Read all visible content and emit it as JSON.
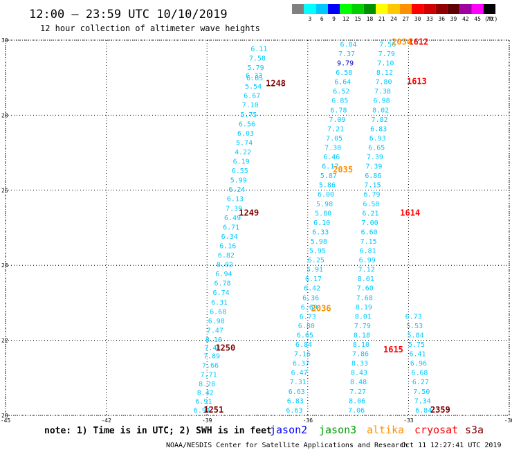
{
  "header": {
    "title": "12:00 — 23:59 UTC 10/10/2019",
    "subtitle": "12 hour collection of altimeter wave heights"
  },
  "colorbar": {
    "unit": "(ft)",
    "bins": [
      {
        "label": "",
        "color": "#808080"
      },
      {
        "label": "3",
        "color": "#00ffff"
      },
      {
        "label": "6",
        "color": "#00c8ff"
      },
      {
        "label": "9",
        "color": "#0000ff"
      },
      {
        "label": "12",
        "color": "#00ff00"
      },
      {
        "label": "15",
        "color": "#00d000"
      },
      {
        "label": "18",
        "color": "#009000"
      },
      {
        "label": "21",
        "color": "#ffff00"
      },
      {
        "label": "24",
        "color": "#ffc800"
      },
      {
        "label": "27",
        "color": "#ff9000"
      },
      {
        "label": "30",
        "color": "#ff0000"
      },
      {
        "label": "33",
        "color": "#d00000"
      },
      {
        "label": "36",
        "color": "#900000"
      },
      {
        "label": "39",
        "color": "#600000"
      },
      {
        "label": "42",
        "color": "#a000a0"
      },
      {
        "label": "45",
        "color": "#ff00ff"
      },
      {
        "label": "70",
        "color": "#000000"
      }
    ]
  },
  "footer": {
    "note": "note: 1) Time is in UTC; 2) SWH is in feet",
    "satellites": [
      {
        "name": "jason2",
        "color": "#0000ff"
      },
      {
        "name": "jason3",
        "color": "#00a000"
      },
      {
        "name": "altika",
        "color": "#ff9000"
      },
      {
        "name": "cryosat",
        "color": "#ff0000"
      },
      {
        "name": "s3a",
        "color": "#800000"
      }
    ],
    "credit": "NOAA/NESDIS Center for Satellite Applications and Research",
    "timestamp": "Oct 11 12:27:41 UTC 2019"
  },
  "chart_data": {
    "type": "scatter",
    "xlim": [
      -45,
      -30
    ],
    "ylim": [
      20,
      30
    ],
    "xticks": [
      "-45",
      "-42",
      "-39",
      "-36",
      "-33",
      "-30"
    ],
    "yticks": [
      "20",
      "22",
      "24",
      "26",
      "28",
      "30"
    ],
    "grid": true,
    "value_color": "#00c8ff",
    "value_color_high": "#0000c8",
    "tracks": [
      {
        "name": "s3a track 1",
        "points": [
          {
            "x": -39.15,
            "y": 20.15,
            "v": "6.94"
          },
          {
            "x": -39.1,
            "y": 20.39,
            "v": "6.91"
          },
          {
            "x": -39.05,
            "y": 20.62,
            "v": "8.42"
          },
          {
            "x": -39.0,
            "y": 20.85,
            "v": "8.28"
          },
          {
            "x": -38.95,
            "y": 21.1,
            "v": "7.71"
          },
          {
            "x": -38.9,
            "y": 21.35,
            "v": "7.66"
          },
          {
            "x": -38.86,
            "y": 21.6,
            "v": "7.89"
          },
          {
            "x": -38.83,
            "y": 21.82,
            "v": "7.41"
          },
          {
            "x": -38.8,
            "y": 22.03,
            "v": "8.10"
          },
          {
            "x": -38.76,
            "y": 22.28,
            "v": "7.47"
          },
          {
            "x": -38.72,
            "y": 22.53,
            "v": "6.98"
          },
          {
            "x": -38.67,
            "y": 22.78,
            "v": "6.68"
          },
          {
            "x": -38.63,
            "y": 23.03,
            "v": "6.31"
          },
          {
            "x": -38.58,
            "y": 23.28,
            "v": "6.74"
          },
          {
            "x": -38.54,
            "y": 23.53,
            "v": "6.78"
          },
          {
            "x": -38.5,
            "y": 23.78,
            "v": "6.94"
          },
          {
            "x": -38.47,
            "y": 24.03,
            "v": "8.02"
          },
          {
            "x": -38.43,
            "y": 24.28,
            "v": "6.82"
          },
          {
            "x": -38.38,
            "y": 24.53,
            "v": "6.16"
          },
          {
            "x": -38.33,
            "y": 24.78,
            "v": "6.34"
          },
          {
            "x": -38.28,
            "y": 25.03,
            "v": "6.71"
          },
          {
            "x": -38.24,
            "y": 25.28,
            "v": "6.49"
          },
          {
            "x": -38.2,
            "y": 25.53,
            "v": "7.39"
          },
          {
            "x": -38.16,
            "y": 25.78,
            "v": "6.13"
          },
          {
            "x": -38.11,
            "y": 26.03,
            "v": "6.24"
          },
          {
            "x": -38.06,
            "y": 26.28,
            "v": "5.99"
          },
          {
            "x": -38.02,
            "y": 26.53,
            "v": "6.55"
          },
          {
            "x": -37.98,
            "y": 26.78,
            "v": "6.19"
          },
          {
            "x": -37.93,
            "y": 27.03,
            "v": "4.22"
          },
          {
            "x": -37.89,
            "y": 27.28,
            "v": "5.74"
          },
          {
            "x": -37.85,
            "y": 27.53,
            "v": "6.03"
          },
          {
            "x": -37.81,
            "y": 27.78,
            "v": "6.56"
          },
          {
            "x": -37.76,
            "y": 28.03,
            "v": "5.75"
          },
          {
            "x": -37.71,
            "y": 28.28,
            "v": "7.10"
          },
          {
            "x": -37.66,
            "y": 28.53,
            "v": "6.67"
          },
          {
            "x": -37.62,
            "y": 28.78,
            "v": "5.54"
          },
          {
            "x": -37.58,
            "y": 29.0,
            "v": "6.85"
          },
          {
            "x": -37.6,
            "y": 29.07,
            "v": "6.33"
          },
          {
            "x": -37.55,
            "y": 29.28,
            "v": "5.79"
          },
          {
            "x": -37.5,
            "y": 29.53,
            "v": "7.58"
          },
          {
            "x": -37.45,
            "y": 29.78,
            "v": "6.11"
          },
          {
            "x": -37.4,
            "y": 30.03,
            "v": "7.69"
          },
          {
            "x": -37.35,
            "y": 30.28,
            "v": "5.77"
          }
        ]
      },
      {
        "name": "s3a track 2",
        "points": [
          {
            "x": -36.4,
            "y": 20.15,
            "v": "6.63"
          },
          {
            "x": -36.37,
            "y": 20.4,
            "v": "6.83"
          },
          {
            "x": -36.33,
            "y": 20.65,
            "v": "6.63"
          },
          {
            "x": -36.29,
            "y": 20.9,
            "v": "7.31"
          },
          {
            "x": -36.25,
            "y": 21.15,
            "v": "6.47"
          },
          {
            "x": -36.2,
            "y": 21.4,
            "v": "6.37"
          },
          {
            "x": -36.16,
            "y": 21.65,
            "v": "7.16"
          },
          {
            "x": -36.12,
            "y": 21.9,
            "v": "6.84"
          },
          {
            "x": -36.08,
            "y": 22.15,
            "v": "6.65"
          },
          {
            "x": -36.04,
            "y": 22.4,
            "v": "6.80"
          },
          {
            "x": -36.0,
            "y": 22.65,
            "v": "6.73"
          },
          {
            "x": -35.96,
            "y": 22.9,
            "v": "6.69"
          },
          {
            "x": -35.91,
            "y": 23.15,
            "v": "6.36"
          },
          {
            "x": -35.87,
            "y": 23.4,
            "v": "6.42"
          },
          {
            "x": -35.83,
            "y": 23.65,
            "v": "6.17"
          },
          {
            "x": -35.79,
            "y": 23.9,
            "v": "5.91"
          },
          {
            "x": -35.75,
            "y": 24.15,
            "v": "6.25"
          },
          {
            "x": -35.71,
            "y": 24.4,
            "v": "5.95"
          },
          {
            "x": -35.67,
            "y": 24.65,
            "v": "5.98"
          },
          {
            "x": -35.62,
            "y": 24.9,
            "v": "6.33"
          },
          {
            "x": -35.58,
            "y": 25.15,
            "v": "6.10"
          },
          {
            "x": -35.54,
            "y": 25.4,
            "v": "5.80"
          },
          {
            "x": -35.5,
            "y": 25.65,
            "v": "5.98"
          },
          {
            "x": -35.46,
            "y": 25.9,
            "v": "6.00"
          },
          {
            "x": -35.42,
            "y": 26.15,
            "v": "5.86"
          },
          {
            "x": -35.38,
            "y": 26.4,
            "v": "5.87"
          },
          {
            "x": -35.33,
            "y": 26.65,
            "v": "6.17"
          },
          {
            "x": -35.29,
            "y": 26.9,
            "v": "6.46"
          },
          {
            "x": -35.25,
            "y": 27.15,
            "v": "7.30"
          },
          {
            "x": -35.21,
            "y": 27.4,
            "v": "7.05"
          },
          {
            "x": -35.17,
            "y": 27.65,
            "v": "7.21"
          },
          {
            "x": -35.12,
            "y": 27.9,
            "v": "7.09"
          },
          {
            "x": -35.08,
            "y": 28.15,
            "v": "6.78"
          },
          {
            "x": -35.04,
            "y": 28.4,
            "v": "6.85"
          },
          {
            "x": -35.0,
            "y": 28.65,
            "v": "6.52"
          },
          {
            "x": -34.96,
            "y": 28.9,
            "v": "6.64"
          },
          {
            "x": -34.92,
            "y": 29.15,
            "v": "6.58"
          },
          {
            "x": -34.88,
            "y": 29.4,
            "v": "9.79"
          },
          {
            "x": -34.84,
            "y": 29.65,
            "v": "7.37"
          },
          {
            "x": -34.79,
            "y": 29.9,
            "v": "6.84"
          },
          {
            "x": -34.75,
            "y": 30.15,
            "v": "6.66"
          }
        ]
      },
      {
        "name": "s3a track 3",
        "points": [
          {
            "x": -34.55,
            "y": 20.15,
            "v": "7.06"
          },
          {
            "x": -34.53,
            "y": 20.4,
            "v": "8.06"
          },
          {
            "x": -34.51,
            "y": 20.65,
            "v": "7.27"
          },
          {
            "x": -34.49,
            "y": 20.9,
            "v": "8.48"
          },
          {
            "x": -34.47,
            "y": 21.15,
            "v": "8.43"
          },
          {
            "x": -34.45,
            "y": 21.4,
            "v": "8.33"
          },
          {
            "x": -34.43,
            "y": 21.65,
            "v": "7.86"
          },
          {
            "x": -34.41,
            "y": 21.9,
            "v": "8.10"
          },
          {
            "x": -34.39,
            "y": 22.15,
            "v": "8.18"
          },
          {
            "x": -34.37,
            "y": 22.4,
            "v": "7.79"
          },
          {
            "x": -34.35,
            "y": 22.65,
            "v": "8.01"
          },
          {
            "x": -34.33,
            "y": 22.9,
            "v": "8.19"
          },
          {
            "x": -34.31,
            "y": 23.15,
            "v": "7.68"
          },
          {
            "x": -34.29,
            "y": 23.4,
            "v": "7.60"
          },
          {
            "x": -34.27,
            "y": 23.65,
            "v": "8.01"
          },
          {
            "x": -34.25,
            "y": 23.9,
            "v": "7.12"
          },
          {
            "x": -34.23,
            "y": 24.15,
            "v": "6.99"
          },
          {
            "x": -34.21,
            "y": 24.4,
            "v": "6.81"
          },
          {
            "x": -34.19,
            "y": 24.65,
            "v": "7.15"
          },
          {
            "x": -34.17,
            "y": 24.9,
            "v": "6.60"
          },
          {
            "x": -34.15,
            "y": 25.15,
            "v": "7.00"
          },
          {
            "x": -34.13,
            "y": 25.4,
            "v": "6.21"
          },
          {
            "x": -34.11,
            "y": 25.65,
            "v": "6.50"
          },
          {
            "x": -34.09,
            "y": 25.9,
            "v": "6.79"
          },
          {
            "x": -34.07,
            "y": 26.15,
            "v": "7.15"
          },
          {
            "x": -34.05,
            "y": 26.4,
            "v": "6.86"
          },
          {
            "x": -34.03,
            "y": 26.65,
            "v": "7.39"
          },
          {
            "x": -34.0,
            "y": 26.9,
            "v": "7.39"
          },
          {
            "x": -33.95,
            "y": 27.15,
            "v": "6.65"
          },
          {
            "x": -33.92,
            "y": 27.4,
            "v": "6.93"
          },
          {
            "x": -33.89,
            "y": 27.65,
            "v": "6.83"
          },
          {
            "x": -33.86,
            "y": 27.9,
            "v": "7.82"
          },
          {
            "x": -33.83,
            "y": 28.15,
            "v": "8.02"
          },
          {
            "x": -33.8,
            "y": 28.4,
            "v": "6.98"
          },
          {
            "x": -33.77,
            "y": 28.65,
            "v": "7.38"
          },
          {
            "x": -33.74,
            "y": 28.9,
            "v": "7.80"
          },
          {
            "x": -33.71,
            "y": 29.15,
            "v": "8.12"
          },
          {
            "x": -33.68,
            "y": 29.4,
            "v": "7.10"
          },
          {
            "x": -33.65,
            "y": 29.65,
            "v": "7.79"
          },
          {
            "x": -33.62,
            "y": 29.9,
            "v": "7.56"
          },
          {
            "x": -33.59,
            "y": 30.15,
            "v": "7.58"
          },
          {
            "x": -33.56,
            "y": 30.4,
            "v": "6.92"
          },
          {
            "x": -33.53,
            "y": 30.65,
            "v": "7.10"
          },
          {
            "x": -33.5,
            "y": 30.9,
            "v": "7.28"
          }
        ]
      },
      {
        "name": "s3a track 4",
        "points": [
          {
            "x": -32.55,
            "y": 20.15,
            "v": "6.84"
          },
          {
            "x": -32.58,
            "y": 20.4,
            "v": "7.34"
          },
          {
            "x": -32.61,
            "y": 20.65,
            "v": "7.50"
          },
          {
            "x": -32.64,
            "y": 20.9,
            "v": "6.27"
          },
          {
            "x": -32.67,
            "y": 21.15,
            "v": "6.68"
          },
          {
            "x": -32.7,
            "y": 21.4,
            "v": "6.96"
          },
          {
            "x": -32.73,
            "y": 21.65,
            "v": "6.41"
          },
          {
            "x": -32.76,
            "y": 21.9,
            "v": "5.75"
          },
          {
            "x": -32.79,
            "y": 22.15,
            "v": "5.84"
          },
          {
            "x": -32.82,
            "y": 22.4,
            "v": "5.53"
          },
          {
            "x": -32.85,
            "y": 22.65,
            "v": "6.73"
          }
        ]
      }
    ],
    "time_labels": [
      {
        "x": -37.25,
        "y": 28.85,
        "t": "1248",
        "color": "#800000"
      },
      {
        "x": -38.05,
        "y": 25.4,
        "t": "1249",
        "color": "#800000"
      },
      {
        "x": -39.1,
        "y": 20.15,
        "t": "1251",
        "color": "#800000"
      },
      {
        "x": -38.75,
        "y": 21.8,
        "t": "1250",
        "color": "#800000"
      },
      {
        "x": -33.75,
        "y": 21.75,
        "t": "1615",
        "color": "#ff0000"
      },
      {
        "x": -33.25,
        "y": 25.4,
        "t": "1614",
        "color": "#ff0000"
      },
      {
        "x": -33.05,
        "y": 28.9,
        "t": "1613",
        "color": "#ff0000"
      },
      {
        "x": -33.0,
        "y": 29.95,
        "t": "1612",
        "color": "#ff0000"
      },
      {
        "x": -33.5,
        "y": 29.95,
        "t": "2034",
        "color": "#ff9000"
      },
      {
        "x": -35.25,
        "y": 26.55,
        "t": "2035",
        "color": "#ff9000"
      },
      {
        "x": -35.9,
        "y": 22.85,
        "t": "2036",
        "color": "#ff9000"
      },
      {
        "x": -32.35,
        "y": 20.15,
        "t": "2359",
        "color": "#800000"
      }
    ]
  }
}
